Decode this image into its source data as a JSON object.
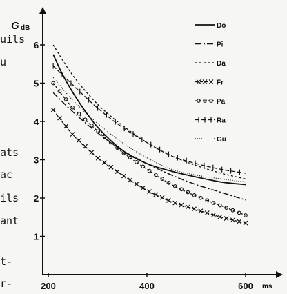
{
  "sidebar_text": [
    "uils",
    "u",
    "ats",
    "ac",
    "ils",
    "ant",
    "t-",
    "r-"
  ],
  "chart_data": {
    "type": "line",
    "title": "",
    "ylabel": "G",
    "ylabel_unit": "dB",
    "xlabel": "ms",
    "xlim": [
      195,
      615
    ],
    "ylim": [
      0,
      6.6
    ],
    "xticks": [
      "200",
      "400",
      "600"
    ],
    "yticks": [
      "1",
      "2",
      "3",
      "4",
      "5",
      "6"
    ],
    "grid": false,
    "legend_position": "top-right",
    "series": [
      {
        "name": "Do",
        "style": "solid",
        "x": [
          210,
          230,
          260,
          300,
          350,
          400,
          450,
          500,
          550,
          600
        ],
        "y": [
          5.75,
          5.2,
          4.55,
          3.85,
          3.25,
          2.9,
          2.7,
          2.55,
          2.42,
          2.35
        ]
      },
      {
        "name": "Pi",
        "style": "dashdot",
        "x": [
          210,
          250,
          300,
          350,
          400,
          450,
          500,
          550,
          600
        ],
        "y": [
          4.75,
          4.25,
          3.7,
          3.25,
          2.9,
          2.6,
          2.35,
          2.15,
          1.95
        ]
      },
      {
        "name": "Da",
        "style": "dashed",
        "x": [
          210,
          250,
          300,
          350,
          400,
          450,
          500,
          550,
          600
        ],
        "y": [
          6.0,
          5.2,
          4.45,
          3.9,
          3.45,
          3.1,
          2.85,
          2.65,
          2.5
        ]
      },
      {
        "name": "Fr",
        "style": "x-dashed",
        "x": [
          210,
          250,
          300,
          350,
          400,
          450,
          500,
          550,
          600
        ],
        "y": [
          4.3,
          3.65,
          3.05,
          2.6,
          2.2,
          1.9,
          1.7,
          1.5,
          1.35
        ]
      },
      {
        "name": "Pa",
        "style": "o-dashed",
        "x": [
          210,
          250,
          300,
          350,
          400,
          450,
          500,
          550,
          600
        ],
        "y": [
          5.0,
          4.35,
          3.75,
          3.2,
          2.75,
          2.35,
          2.05,
          1.8,
          1.55
        ]
      },
      {
        "name": "Ra",
        "style": "bar-dashed",
        "x": [
          210,
          250,
          300,
          350,
          400,
          450,
          500,
          550,
          600
        ],
        "y": [
          5.45,
          4.95,
          4.35,
          3.85,
          3.45,
          3.1,
          2.9,
          2.75,
          2.65
        ]
      },
      {
        "name": "Gu",
        "style": "dotted",
        "x": [
          210,
          250,
          300,
          350,
          400,
          450,
          500,
          550,
          600
        ],
        "y": [
          5.15,
          4.55,
          3.95,
          3.45,
          3.05,
          2.75,
          2.6,
          2.5,
          2.42
        ]
      }
    ]
  }
}
